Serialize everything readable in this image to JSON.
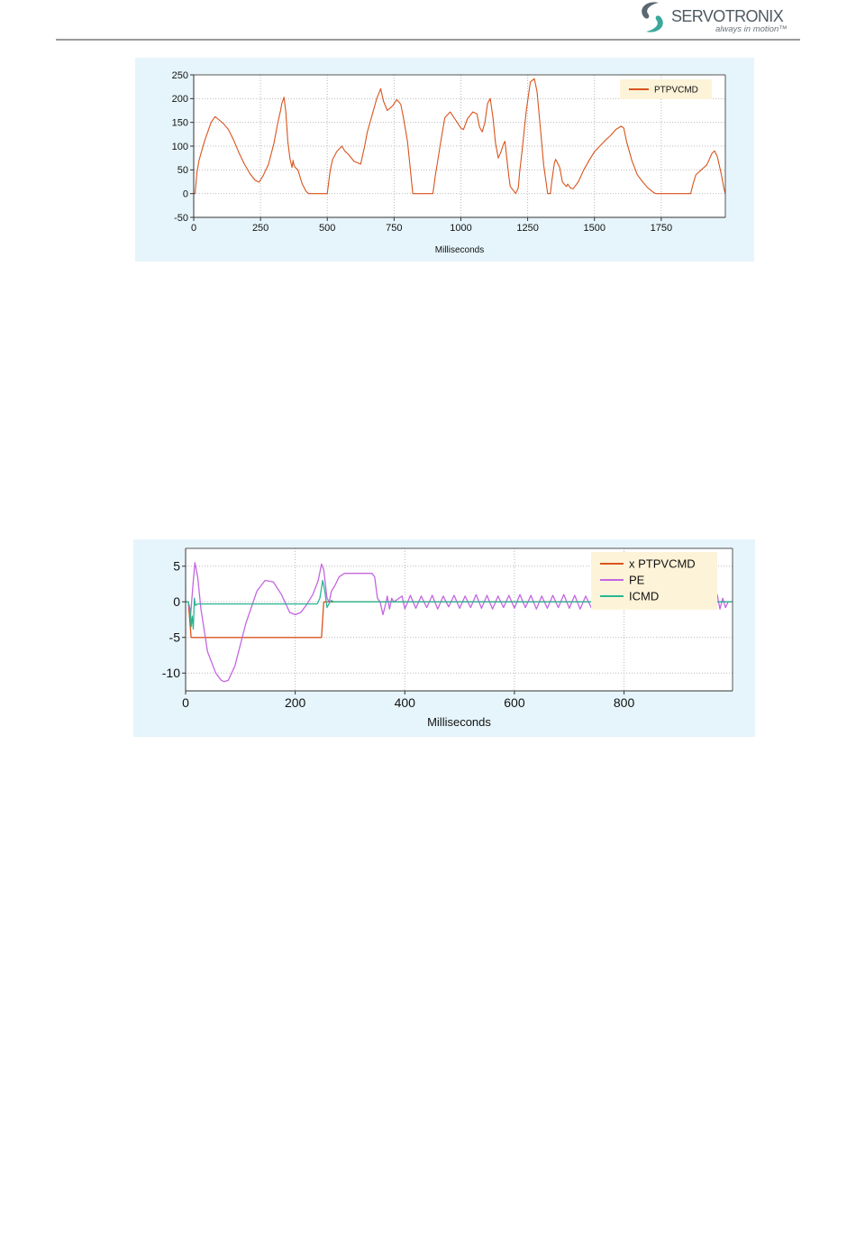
{
  "header": {
    "logo": {
      "name": "SERVOTRONIX",
      "tagline": "always in motion™",
      "icon": "servotronix-s-logo-icon",
      "colors": {
        "gray": "#4f5a62",
        "teal": "#3aa89a"
      }
    }
  },
  "chart_data": [
    {
      "type": "line",
      "title": "",
      "xlabel": "Milliseconds",
      "ylabel": "",
      "xlim": [
        0,
        1990
      ],
      "ylim": [
        -50,
        250
      ],
      "x_ticks": [
        0,
        250,
        500,
        750,
        1000,
        1250,
        1500,
        1750
      ],
      "y_ticks": [
        250,
        200,
        150,
        100,
        50,
        0,
        -50
      ],
      "grid": true,
      "legend_position": "top-right",
      "series": [
        {
          "name": "PTPVCMD",
          "color": "#d9541c",
          "x": [
            0,
            5,
            12,
            20,
            40,
            65,
            80,
            95,
            110,
            130,
            150,
            170,
            190,
            210,
            230,
            245,
            260,
            280,
            300,
            315,
            325,
            330,
            338,
            345,
            352,
            360,
            368,
            372,
            375,
            380,
            390,
            405,
            420,
            430,
            440,
            500,
            510,
            515,
            520,
            535,
            555,
            565,
            580,
            600,
            625,
            640,
            650,
            665,
            685,
            700,
            710,
            725,
            745,
            760,
            775,
            785,
            800,
            810,
            820,
            840,
            870,
            895,
            905,
            915,
            925,
            940,
            960,
            980,
            1000,
            1010,
            1025,
            1045,
            1060,
            1070,
            1080,
            1090,
            1100,
            1110,
            1120,
            1130,
            1140,
            1150,
            1160,
            1165,
            1175,
            1180,
            1185,
            1200,
            1205,
            1215,
            1220,
            1230,
            1245,
            1260,
            1275,
            1285,
            1295,
            1310,
            1325,
            1335,
            1340,
            1350,
            1355,
            1370,
            1380,
            1390,
            1395,
            1400,
            1410,
            1420,
            1440,
            1460,
            1480,
            1500,
            1520,
            1540,
            1560,
            1580,
            1600,
            1610,
            1620,
            1640,
            1660,
            1680,
            1700,
            1720,
            1730,
            1740,
            1750,
            1850,
            1860,
            1870,
            1880,
            1900,
            1920,
            1930,
            1940,
            1950,
            1960,
            1975,
            1985,
            1990
          ],
          "values": [
            0,
            0,
            45,
            70,
            110,
            150,
            162,
            155,
            148,
            135,
            112,
            85,
            62,
            42,
            28,
            24,
            38,
            62,
            105,
            150,
            175,
            190,
            203,
            170,
            110,
            75,
            55,
            70,
            60,
            55,
            50,
            22,
            5,
            0,
            0,
            0,
            45,
            60,
            72,
            88,
            100,
            90,
            82,
            68,
            62,
            100,
            130,
            160,
            200,
            221,
            195,
            175,
            185,
            198,
            188,
            160,
            110,
            55,
            0,
            0,
            0,
            0,
            40,
            75,
            110,
            160,
            172,
            155,
            138,
            135,
            158,
            172,
            168,
            140,
            130,
            150,
            190,
            200,
            160,
            105,
            75,
            88,
            105,
            110,
            58,
            35,
            15,
            4,
            0,
            12,
            45,
            95,
            175,
            235,
            242,
            215,
            155,
            60,
            0,
            0,
            25,
            65,
            72,
            55,
            25,
            18,
            15,
            20,
            12,
            10,
            25,
            50,
            70,
            88,
            100,
            112,
            122,
            135,
            142,
            138,
            110,
            70,
            40,
            25,
            12,
            3,
            0,
            0,
            0,
            0,
            0,
            22,
            40,
            50,
            60,
            72,
            85,
            90,
            78,
            40,
            10,
            0
          ]
        }
      ]
    },
    {
      "type": "line",
      "title": "",
      "xlabel": "Milliseconds",
      "ylabel": "",
      "xlim": [
        0,
        998
      ],
      "ylim": [
        -12.5,
        7.5
      ],
      "x_ticks": [
        0,
        200,
        400,
        600,
        800
      ],
      "y_ticks": [
        5,
        0,
        -5,
        -10
      ],
      "grid": true,
      "legend_position": "top-right",
      "series": [
        {
          "name": "x PTPVCMD",
          "color": "#d9541c",
          "x": [
            0,
            5,
            10,
            248,
            252,
            258,
            998
          ],
          "values": [
            0,
            0,
            -5,
            -5,
            0,
            0,
            0
          ]
        },
        {
          "name": "PE",
          "color": "#c466e0",
          "x": [
            0,
            5,
            9,
            13,
            17,
            22,
            28,
            40,
            55,
            65,
            70,
            78,
            90,
            110,
            130,
            145,
            160,
            175,
            190,
            200,
            210,
            220,
            232,
            242,
            248,
            252,
            258,
            262,
            266,
            272,
            280,
            290,
            300,
            320,
            340,
            345,
            350,
            355,
            360,
            365,
            368,
            372,
            376,
            380,
            395,
            400,
            410,
            420,
            430,
            440,
            450,
            460,
            470,
            480,
            490,
            500,
            510,
            520,
            530,
            540,
            550,
            560,
            570,
            580,
            590,
            600,
            610,
            620,
            630,
            640,
            650,
            660,
            670,
            680,
            690,
            700,
            710,
            720,
            730,
            740,
            750,
            770,
            780,
            960,
            970,
            975,
            980,
            985,
            990,
            998
          ],
          "values": [
            0,
            0,
            -2,
            2,
            5.5,
            3.5,
            -1,
            -7,
            -10,
            -11,
            -11.2,
            -11,
            -9,
            -3,
            1.5,
            3,
            2.8,
            1,
            -1.5,
            -1.8,
            -1.5,
            -0.5,
            1,
            3,
            5.3,
            4.5,
            0.5,
            0,
            1.5,
            2.2,
            3.5,
            4,
            4,
            4,
            4,
            3.5,
            0.5,
            0,
            -1.8,
            -0.3,
            0.8,
            -1,
            0.5,
            0,
            0.8,
            -1,
            0.9,
            -0.9,
            0.8,
            -0.8,
            0.9,
            -1,
            0.8,
            -0.7,
            0.9,
            -0.9,
            0.8,
            -0.8,
            1,
            -0.9,
            0.9,
            -1,
            0.8,
            -0.8,
            0.9,
            -0.9,
            1,
            -0.8,
            0.9,
            -1,
            0.8,
            -0.9,
            0.9,
            -0.8,
            1,
            -0.9,
            0.9,
            -1,
            0.8,
            -0.8,
            0.5,
            0,
            0,
            0,
            1,
            -1,
            0.5,
            -0.8,
            0,
            0
          ]
        },
        {
          "name": "ICMD",
          "color": "#2bb592",
          "x": [
            0,
            5,
            8,
            10,
            12,
            14,
            16,
            18,
            22,
            240,
            245,
            250,
            254,
            258,
            262,
            266,
            270,
            998
          ],
          "values": [
            0,
            0,
            -1,
            -3.5,
            -2,
            -3.8,
            0.5,
            -0.5,
            -0.3,
            -0.3,
            0.5,
            3,
            1.5,
            -0.8,
            -0.2,
            0.2,
            0,
            0
          ]
        }
      ]
    }
  ]
}
